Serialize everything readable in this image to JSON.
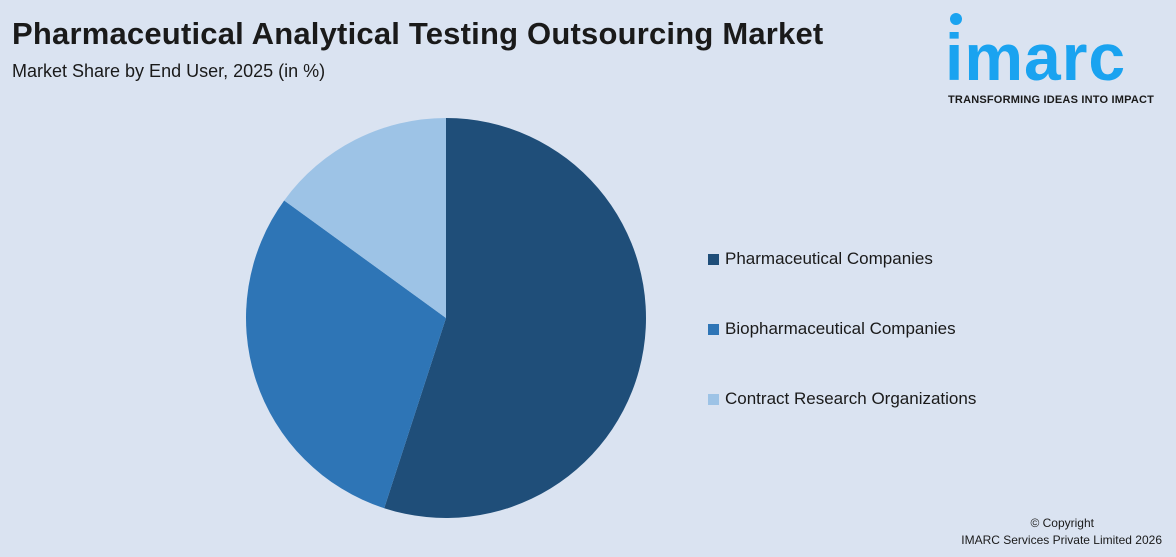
{
  "header": {
    "title": "Pharmaceutical Analytical Testing Outsourcing Market",
    "subtitle": "Market Share by End User, 2025 (in %)"
  },
  "logo": {
    "word": "imarc",
    "tagline": "TRANSFORMING IDEAS INTO IMPACT",
    "color": "#1aa3f0"
  },
  "chart_data": {
    "type": "pie",
    "title": "Pharmaceutical Analytical Testing Outsourcing Market",
    "subtitle": "Market Share by End User, 2025 (in %)",
    "categories": [
      "Pharmaceutical Companies",
      "Biopharmaceutical Companies",
      "Contract Research Organizations"
    ],
    "values": [
      55,
      30,
      15
    ],
    "colors": [
      "#1f4e79",
      "#2e75b6",
      "#9dc3e6"
    ],
    "start_angle": "top",
    "direction": "clockwise",
    "legend_position": "right"
  },
  "footer": {
    "copyright": "© Copyright",
    "company": "IMARC Services Private Limited 2026"
  }
}
